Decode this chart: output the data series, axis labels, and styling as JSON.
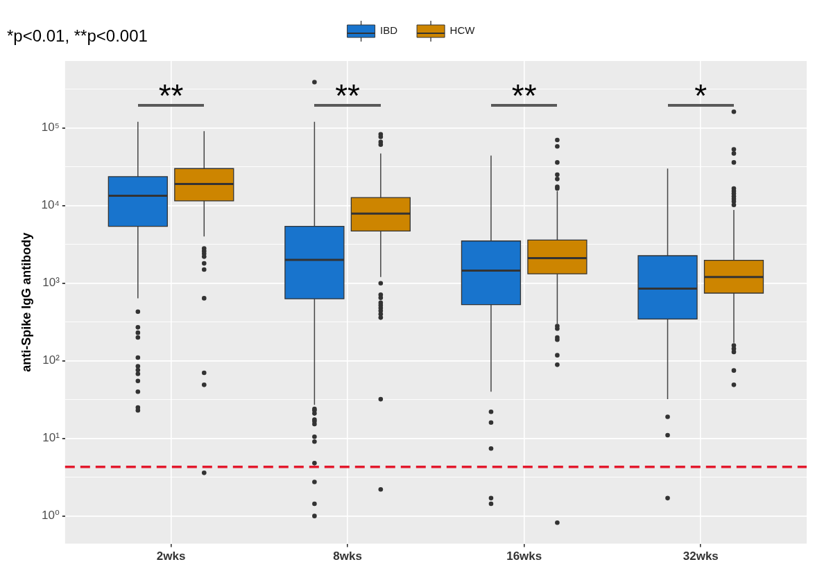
{
  "chart_data": {
    "type": "box",
    "categories": [
      "2wks",
      "8wks",
      "16wks",
      "32wks"
    ],
    "ylabel": "anti-Spike IgG antibody",
    "log": true,
    "ylim": [
      0.44,
      730000
    ],
    "yticks": [
      {
        "value": 1,
        "label": "10⁰"
      },
      {
        "value": 3.16,
        "label": null
      },
      {
        "value": 10,
        "label": "10¹"
      },
      {
        "value": 31.6,
        "label": null
      },
      {
        "value": 100,
        "label": "10²"
      },
      {
        "value": 316,
        "label": null
      },
      {
        "value": 1000,
        "label": "10³"
      },
      {
        "value": 3160,
        "label": null
      },
      {
        "value": 10000,
        "label": "10⁴"
      },
      {
        "value": 31600,
        "label": null
      },
      {
        "value": 100000,
        "label": "10⁵"
      },
      {
        "value": 316000,
        "label": null
      }
    ],
    "grid": true,
    "legend": "top",
    "series": [
      {
        "name": "IBD",
        "color": "#1874cd",
        "boxes": [
          {
            "low": 640,
            "q1": 5400,
            "median": 13400,
            "q3": 23600,
            "high": 120000,
            "outliers": [
              430,
              270,
              230,
              200,
              110,
              85,
              76,
              68,
              55,
              40,
              25,
              23
            ]
          },
          {
            "low": 27,
            "q1": 630,
            "median": 2000,
            "q3": 5400,
            "high": 120000,
            "outliers": [
              390000,
              24,
              23,
              21,
              17.5,
              16.6,
              15.3,
              10.5,
              9.1,
              4.8,
              2.75,
              1.44,
              1.0
            ]
          },
          {
            "low": 40,
            "q1": 530,
            "median": 1450,
            "q3": 3500,
            "high": 44000,
            "outliers": [
              22,
              16,
              7.4,
              1.7,
              1.44
            ]
          },
          {
            "low": 32,
            "q1": 345,
            "median": 850,
            "q3": 2260,
            "high": 30000,
            "outliers": [
              19,
              11,
              1.7
            ]
          }
        ]
      },
      {
        "name": "HCW",
        "color": "#cd8500",
        "boxes": [
          {
            "low": 4000,
            "q1": 11500,
            "median": 19000,
            "q3": 30000,
            "high": 91000,
            "outliers": [
              2800,
              2600,
              2400,
              2200,
              1800,
              1500,
              640,
              70,
              49,
              3.6
            ]
          },
          {
            "low": 1200,
            "q1": 4700,
            "median": 7900,
            "q3": 12700,
            "high": 47000,
            "outliers": [
              83000,
              77000,
              66000,
              61000,
              1000,
              710,
              650,
              560,
              520,
              480,
              440,
              400,
              360,
              32,
              2.2
            ]
          },
          {
            "low": 300,
            "q1": 1320,
            "median": 2100,
            "q3": 3600,
            "high": 15400,
            "outliers": [
              70000,
              58000,
              36000,
              25000,
              22000,
              17500,
              16600,
              280,
              260,
              200,
              187,
              118,
              89,
              0.82
            ]
          },
          {
            "low": 170,
            "q1": 745,
            "median": 1200,
            "q3": 1970,
            "high": 8800,
            "outliers": [
              162000,
              53000,
              47000,
              36000,
              16600,
              15400,
              14300,
              13200,
              12200,
              11300,
              10200,
              158,
              143,
              130,
              75,
              49
            ]
          }
        ]
      }
    ],
    "ref_lines": [
      {
        "axis": "y",
        "value": 4.3,
        "color": "#e3192d",
        "line_style": "dashed"
      }
    ],
    "annotations": [
      "*p<0.01, **p<0.001",
      "**",
      "**",
      "**",
      "*"
    ]
  }
}
